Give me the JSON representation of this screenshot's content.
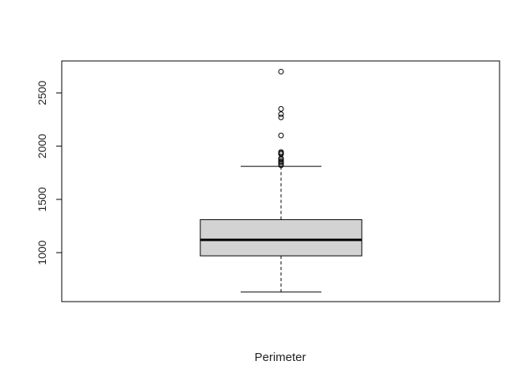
{
  "chart_data": {
    "type": "boxplot",
    "xlabel": "Perimeter",
    "ylabel": "",
    "ylim": [
      540,
      2800
    ],
    "yticks": [
      1000,
      1500,
      2000,
      2500
    ],
    "ytick_labels": [
      "1000",
      "1500",
      "2000",
      "2500"
    ],
    "box": {
      "whisker_low": 630,
      "q1": 970,
      "median": 1120,
      "q3": 1310,
      "whisker_high": 1810
    },
    "outliers": [
      1820,
      1835,
      1850,
      1860,
      1875,
      1885,
      1925,
      1935,
      1945,
      2100,
      2270,
      2300,
      2350,
      2700
    ],
    "box_fill": "#d3d3d3",
    "line_color": "#000000",
    "grid": false
  }
}
